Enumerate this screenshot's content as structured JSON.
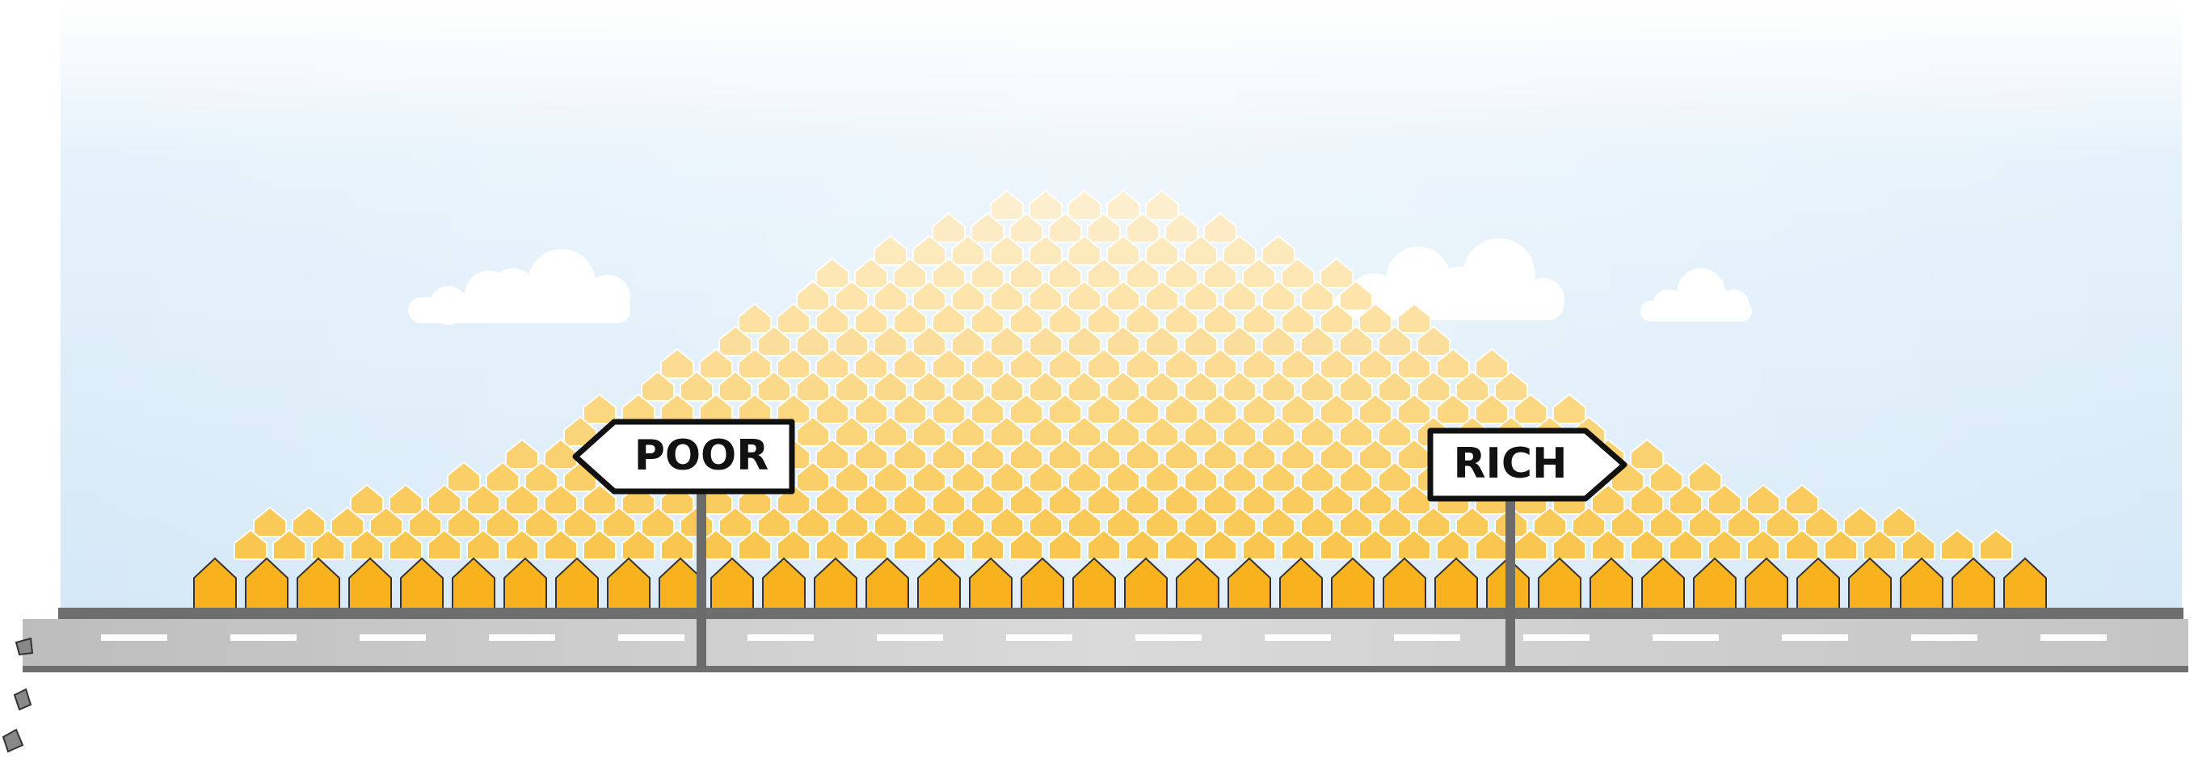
{
  "signs": [
    {
      "label": "POOR"
    },
    {
      "label": "RICH"
    }
  ]
}
